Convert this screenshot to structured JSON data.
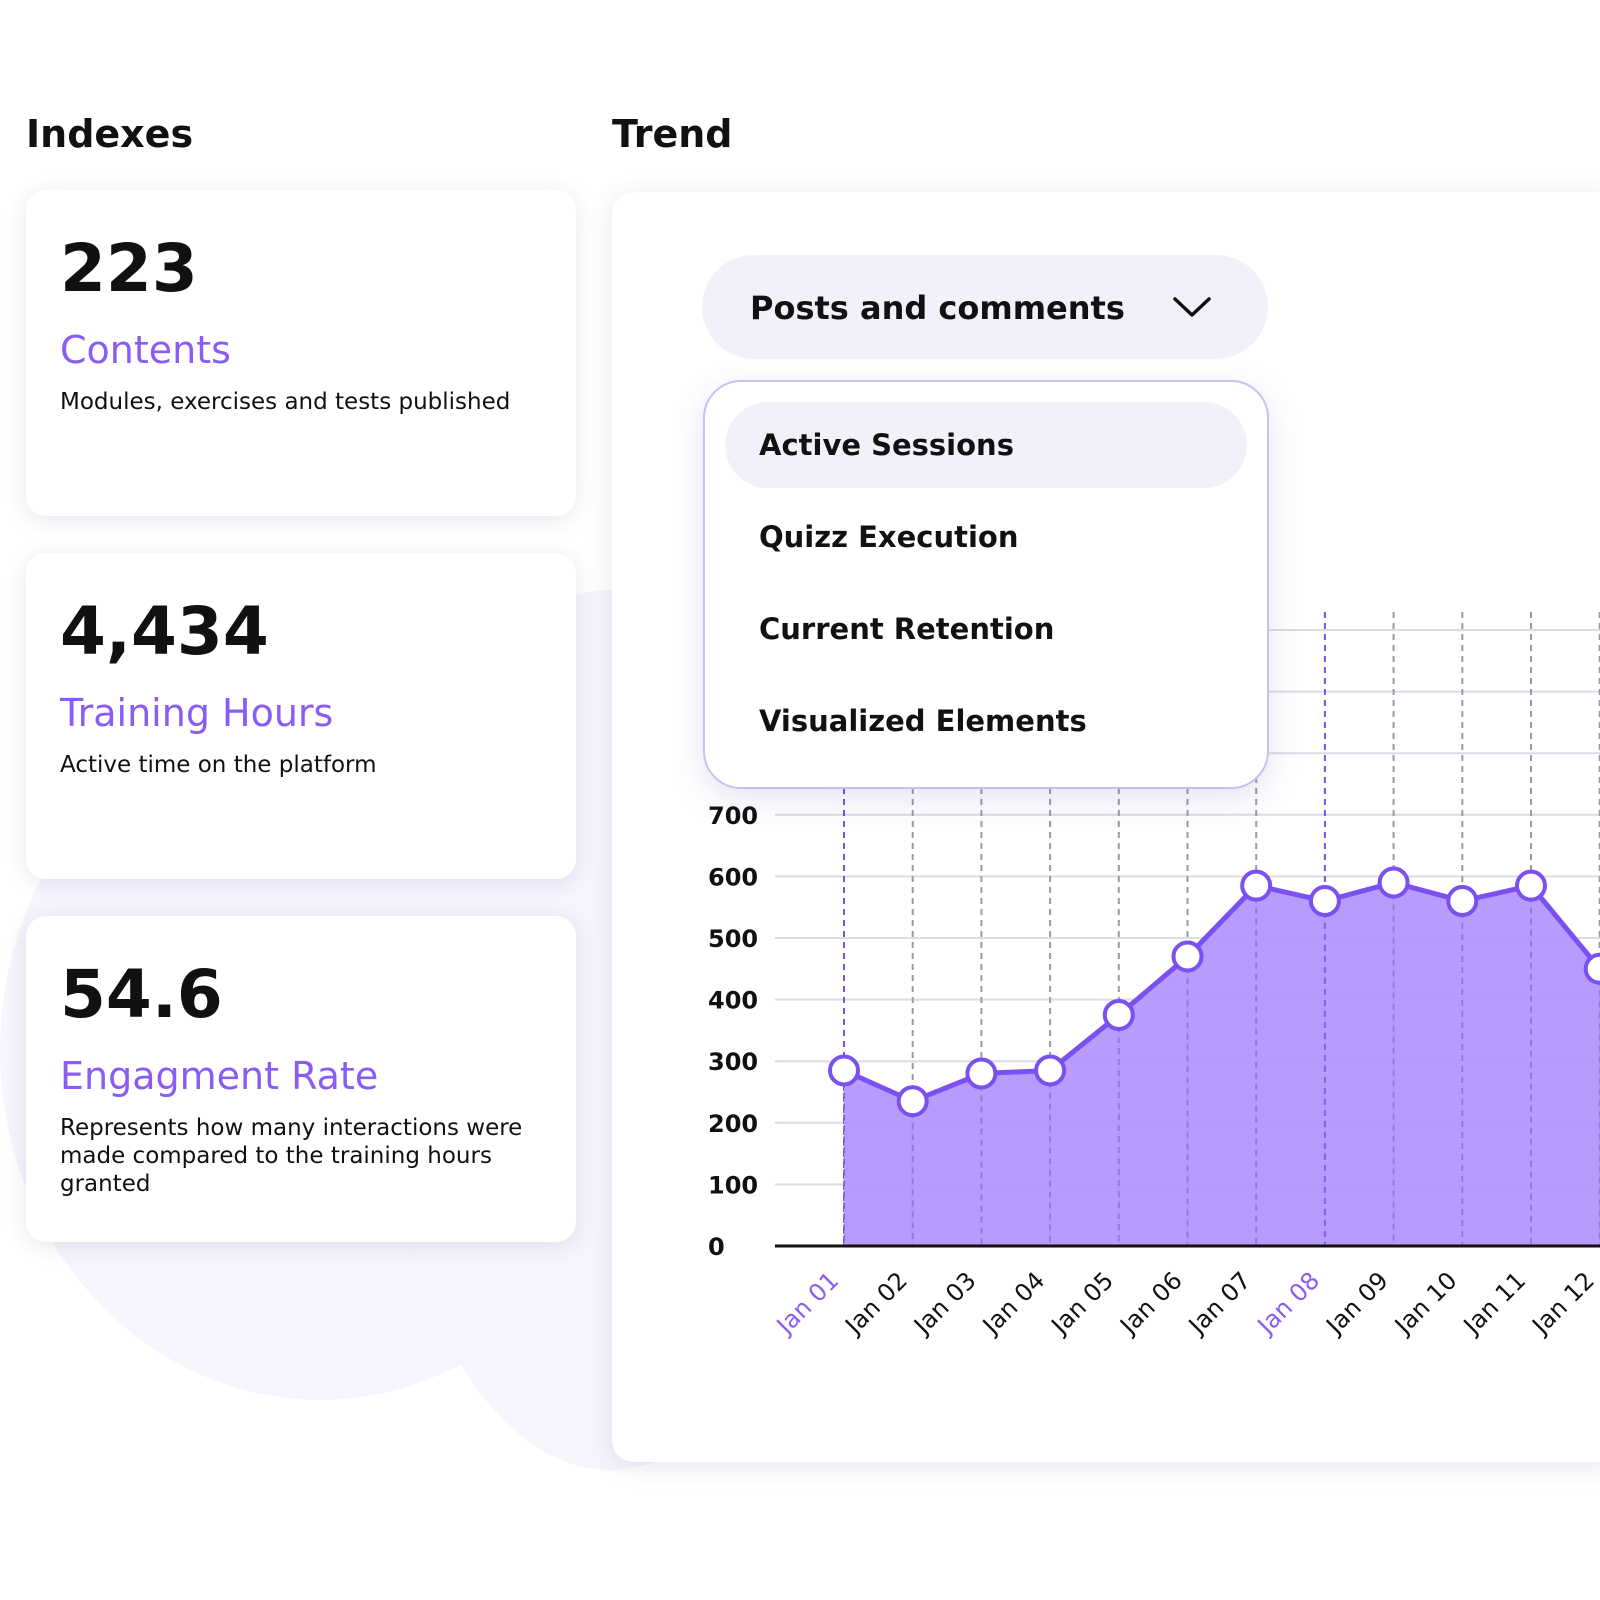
{
  "indexes": {
    "title": "Indexes",
    "cards": [
      {
        "value": "223",
        "label": "Contents",
        "description": "Modules, exercises and tests published"
      },
      {
        "value": "4,434",
        "label": "Training Hours",
        "description": "Active time on the platform"
      },
      {
        "value": "54.6",
        "label": "Engagment Rate",
        "description": "Represents how many interactions were made compared to the training hours granted"
      }
    ]
  },
  "trend": {
    "title": "Trend",
    "select": {
      "value": "Posts and comments",
      "icon": "chevron-down-icon"
    },
    "dropdown_options": [
      "Active Sessions",
      "Quizz Execution",
      "Current Retention",
      "Visualized Elements"
    ],
    "highlighted_option": "Active Sessions"
  },
  "colors": {
    "accent": "#8a5cf6",
    "area_fill": "#b397fe",
    "line": "#7b4ff0"
  },
  "chart_data": {
    "type": "area",
    "x": [
      "Jan 01",
      "Jan 02",
      "Jan 03",
      "Jan 04",
      "Jan 05",
      "Jan 06",
      "Jan 07",
      "Jan 08",
      "Jan 09",
      "Jan 10",
      "Jan 11",
      "Jan 12"
    ],
    "values": [
      285,
      235,
      280,
      285,
      375,
      470,
      585,
      560,
      590,
      560,
      585,
      450
    ],
    "yticks": [
      0,
      100,
      200,
      300,
      400,
      500,
      600,
      700
    ],
    "highlighted_x": [
      "Jan 01",
      "Jan 08"
    ],
    "grid": true
  }
}
